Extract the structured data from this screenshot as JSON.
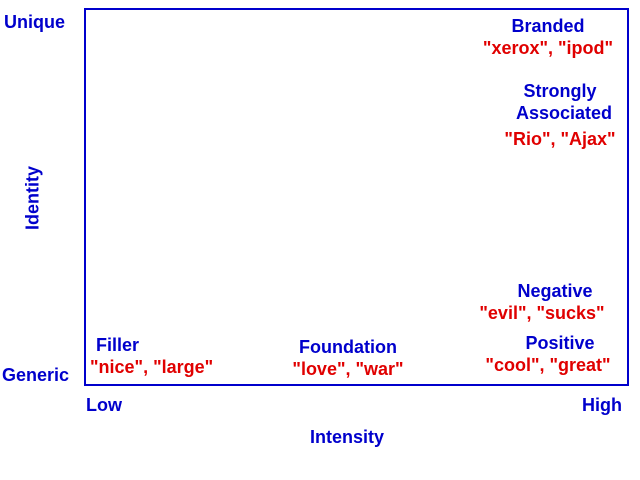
{
  "axes": {
    "y_top": "Unique",
    "y_bottom": "Generic",
    "y_title": "Identity",
    "x_left": "Low",
    "x_right": "High",
    "x_title": "Intensity"
  },
  "categories": {
    "branded": {
      "name": "Branded",
      "examples": "\"xerox\", \"ipod\""
    },
    "strongly_associated": {
      "name_line1": "Strongly",
      "name_line2": "Associated",
      "examples": "\"Rio\", \"Ajax\""
    },
    "negative": {
      "name": "Negative",
      "examples": "\"evil\", \"sucks\""
    },
    "positive": {
      "name": "Positive",
      "examples": "\"cool\", \"great\""
    },
    "filler": {
      "name": "Filler",
      "examples": "\"nice\", \"large\""
    },
    "foundation": {
      "name": "Foundation",
      "examples": "\"love\", \"war\""
    }
  },
  "colors": {
    "category_name": "#0000cc",
    "examples": "#e00000",
    "frame": "#0000cc"
  }
}
